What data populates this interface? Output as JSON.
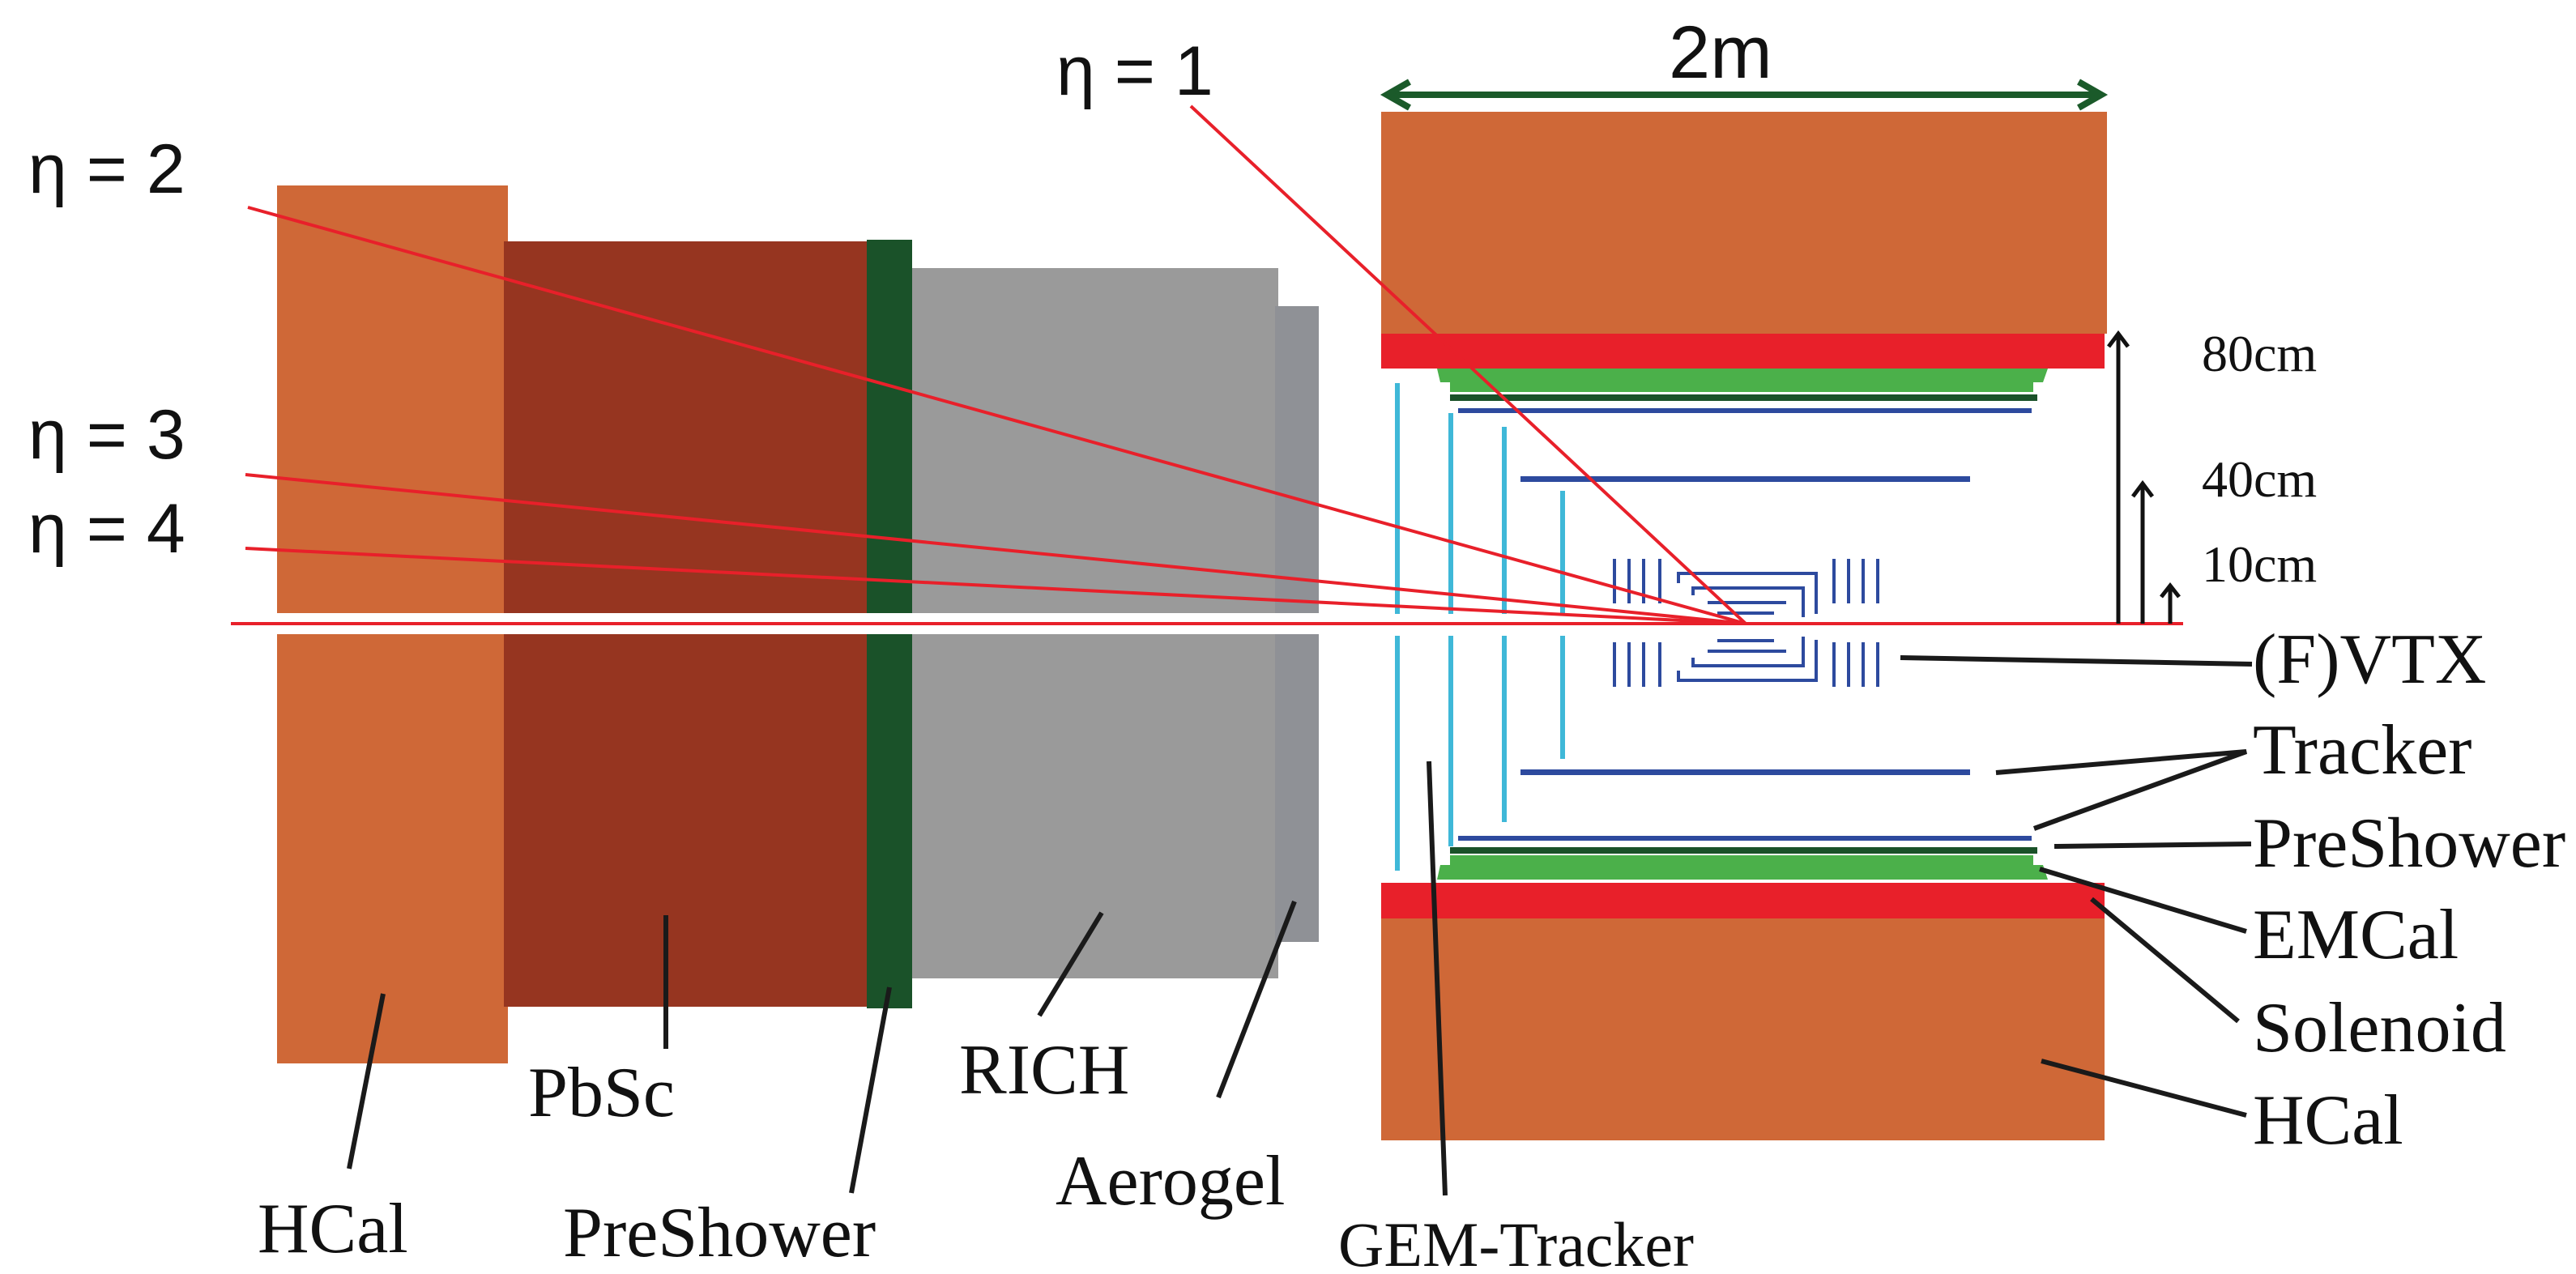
{
  "eta_labels": [
    "η = 1",
    "η = 2",
    "η = 3",
    "η = 4"
  ],
  "scale": {
    "width": "2m",
    "radii": [
      "80cm",
      "40cm",
      "10cm"
    ]
  },
  "forward_labels": {
    "hcal": "HCal",
    "pbsc": "PbSc",
    "preshower": "PreShower",
    "rich": "RICH",
    "aerogel": "Aerogel",
    "gem_tracker": "GEM-Tracker"
  },
  "barrel_labels": {
    "vtx": "(F)VTX",
    "tracker": "Tracker",
    "preshower": "PreShower",
    "emcal": "EMCal",
    "solenoid": "Solenoid",
    "hcal": "HCal"
  },
  "colors": {
    "hcal": "#cf6837",
    "pbsc": "#963520",
    "preshower_dark_green": "#1a5229",
    "rich": "#9a9a9a",
    "aerogel": "#8f9196",
    "solenoid": "#e8202a",
    "emcal_green": "#4bb04a",
    "tracker_blue": "#2d4a9e",
    "gem_cyan": "#3fb8d8",
    "scale_arrow": "#1b5a2a"
  }
}
